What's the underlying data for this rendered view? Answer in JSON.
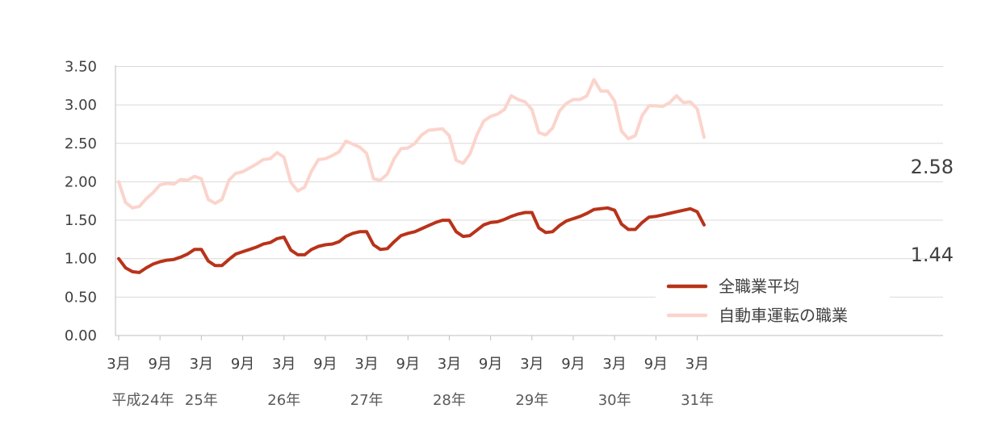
{
  "chart_data": {
    "type": "line",
    "ylim": [
      0,
      3.5
    ],
    "yticks": [
      "0.00",
      "0.50",
      "1.00",
      "1.50",
      "2.00",
      "2.50",
      "3.00",
      "3.50"
    ],
    "grid": true,
    "legend_position": "bottom-right",
    "month_tick_labels": [
      "3月",
      "9月",
      "3月",
      "9月",
      "3月",
      "9月",
      "3月",
      "9月",
      "3月",
      "9月",
      "3月",
      "9月",
      "3月",
      "9月",
      "3月"
    ],
    "year_labels": [
      "平成24年",
      "25年",
      "26年",
      "27年",
      "28年",
      "29年",
      "30年",
      "31年"
    ],
    "series": [
      {
        "name": "全職業平均",
        "color": "#b8331a",
        "end_label": "1.44",
        "values": [
          1.0,
          0.88,
          0.83,
          0.82,
          0.88,
          0.93,
          0.96,
          0.98,
          0.99,
          1.02,
          1.06,
          1.12,
          1.12,
          0.97,
          0.91,
          0.91,
          0.99,
          1.06,
          1.09,
          1.12,
          1.15,
          1.19,
          1.21,
          1.26,
          1.28,
          1.11,
          1.05,
          1.05,
          1.12,
          1.16,
          1.18,
          1.19,
          1.22,
          1.29,
          1.33,
          1.35,
          1.35,
          1.18,
          1.12,
          1.13,
          1.22,
          1.3,
          1.33,
          1.35,
          1.39,
          1.43,
          1.47,
          1.5,
          1.5,
          1.35,
          1.29,
          1.3,
          1.37,
          1.44,
          1.47,
          1.48,
          1.51,
          1.55,
          1.58,
          1.6,
          1.6,
          1.4,
          1.34,
          1.35,
          1.43,
          1.49,
          1.52,
          1.55,
          1.59,
          1.64,
          1.65,
          1.66,
          1.63,
          1.45,
          1.38,
          1.38,
          1.47,
          1.54,
          1.55,
          1.57,
          1.59,
          1.61,
          1.63,
          1.65,
          1.61,
          1.44
        ]
      },
      {
        "name": "自動車運転の職業",
        "color": "#fbd4cc",
        "end_label": "2.58",
        "values": [
          2.0,
          1.73,
          1.66,
          1.68,
          1.78,
          1.86,
          1.96,
          1.98,
          1.97,
          2.03,
          2.02,
          2.07,
          2.04,
          1.77,
          1.72,
          1.77,
          2.02,
          2.11,
          2.13,
          2.18,
          2.23,
          2.29,
          2.3,
          2.38,
          2.32,
          1.99,
          1.88,
          1.93,
          2.14,
          2.29,
          2.3,
          2.34,
          2.39,
          2.53,
          2.49,
          2.45,
          2.37,
          2.04,
          2.02,
          2.1,
          2.3,
          2.43,
          2.44,
          2.5,
          2.61,
          2.67,
          2.68,
          2.69,
          2.6,
          2.28,
          2.24,
          2.36,
          2.61,
          2.79,
          2.85,
          2.88,
          2.94,
          3.12,
          3.07,
          3.04,
          2.94,
          2.64,
          2.61,
          2.7,
          2.92,
          3.02,
          3.07,
          3.07,
          3.12,
          3.33,
          3.18,
          3.18,
          3.05,
          2.66,
          2.56,
          2.6,
          2.86,
          2.99,
          2.99,
          2.98,
          3.03,
          3.12,
          3.03,
          3.04,
          2.95,
          2.58
        ]
      }
    ]
  }
}
